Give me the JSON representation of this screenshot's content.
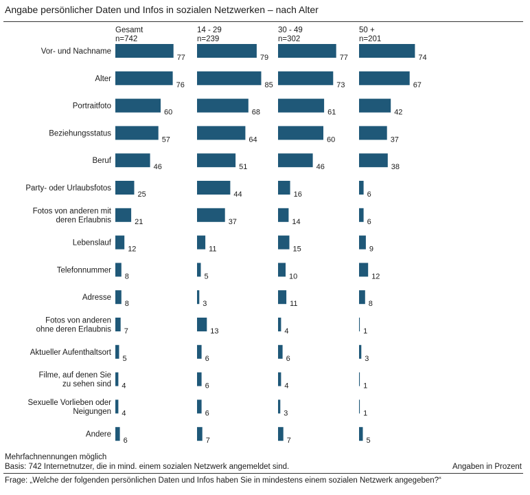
{
  "title": "Angabe persönlicher Daten und Infos in sozialen Netzwerken – nach Alter",
  "footer": {
    "note1": "Mehrfachnennungen möglich",
    "note2": "Basis: 742 Internetnutzer, die in mind. einem sozialen Netzwerk angemeldet sind.",
    "unit": "Angaben in Prozent",
    "question": "Frage: „Welche der folgenden persönlichen Daten und Infos haben Sie in mindestens einem sozialen Netzwerk angegeben?“"
  },
  "chart_data": {
    "type": "bar",
    "orientation": "horizontal",
    "bar_color": "#1f5878",
    "categories": [
      [
        "Vor- und Nachname"
      ],
      [
        "Alter"
      ],
      [
        "Portraitfoto"
      ],
      [
        "Beziehungsstatus"
      ],
      [
        "Beruf"
      ],
      [
        "Party- oder Urlaubsfotos"
      ],
      [
        "Fotos von anderen mit",
        "deren Erlaubnis"
      ],
      [
        "Lebenslauf"
      ],
      [
        "Telefonnummer"
      ],
      [
        "Adresse"
      ],
      [
        "Fotos von anderen",
        "ohne deren Erlaubnis"
      ],
      [
        "Aktueller Aufenthaltsort"
      ],
      [
        "Filme, auf denen Sie",
        "zu sehen sind"
      ],
      [
        "Sexuelle Vorlieben oder",
        "Neigungen"
      ],
      [
        "Andere"
      ]
    ],
    "series": [
      {
        "name": "Gesamt",
        "n": "n=742",
        "values": [
          77,
          76,
          60,
          57,
          46,
          25,
          21,
          12,
          8,
          8,
          7,
          5,
          4,
          4,
          6
        ]
      },
      {
        "name": "14 - 29",
        "n": "n=239",
        "values": [
          79,
          85,
          68,
          64,
          51,
          44,
          37,
          11,
          5,
          3,
          13,
          6,
          6,
          6,
          7
        ]
      },
      {
        "name": "30 - 49",
        "n": "n=302",
        "values": [
          77,
          73,
          61,
          60,
          46,
          16,
          14,
          15,
          10,
          11,
          4,
          6,
          4,
          3,
          7
        ]
      },
      {
        "name": "50 +",
        "n": "n=201",
        "values": [
          74,
          67,
          42,
          37,
          38,
          6,
          6,
          9,
          12,
          8,
          1,
          3,
          1,
          1,
          5
        ]
      }
    ],
    "xlim": [
      0,
      100
    ],
    "grid": false,
    "legend": "none"
  }
}
